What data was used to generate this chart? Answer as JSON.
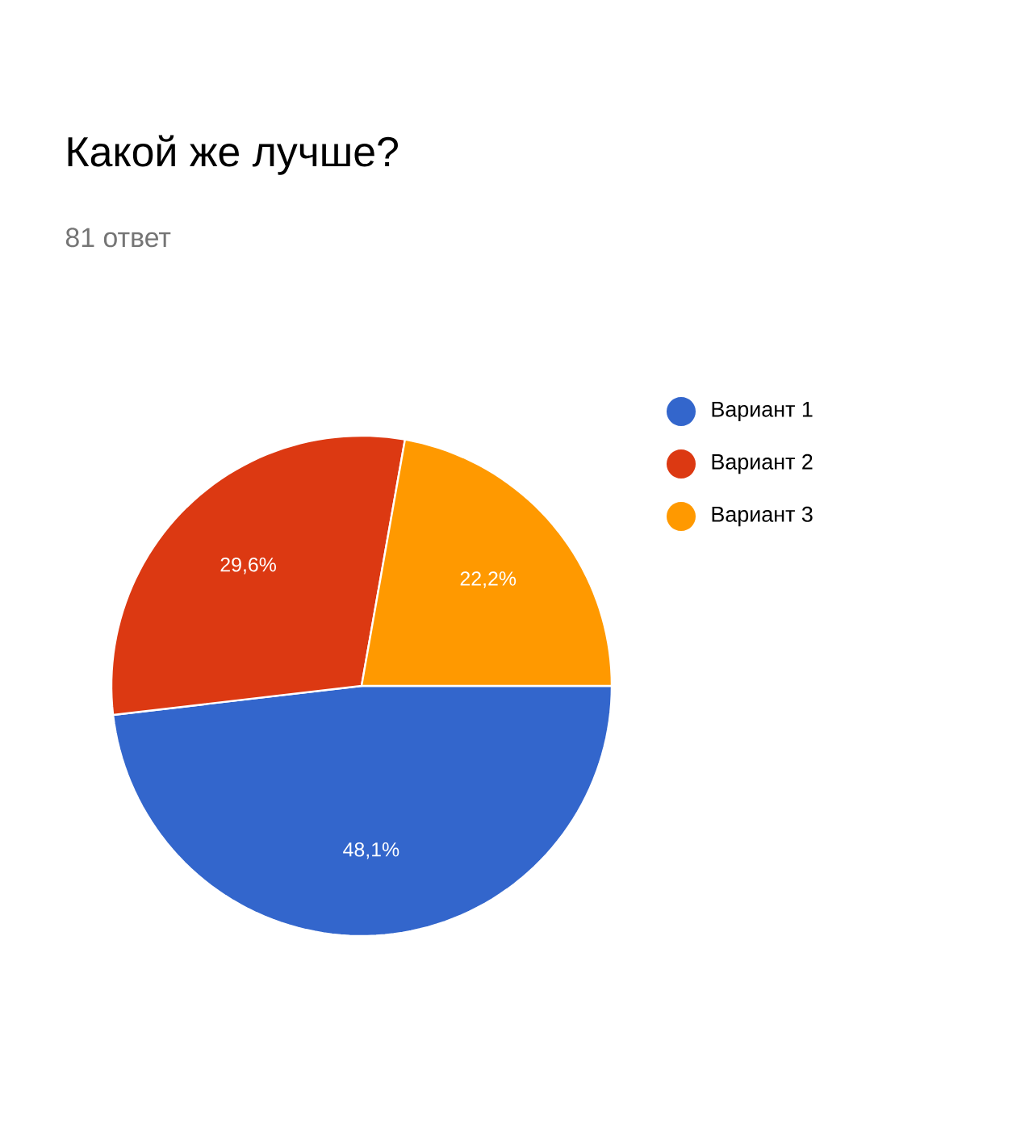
{
  "chart_data": {
    "type": "pie",
    "title": "Какой же лучше?",
    "subtitle": "81 ответ",
    "categories": [
      "Вариант 1",
      "Вариант 2",
      "Вариант 3"
    ],
    "values": [
      48.1,
      29.6,
      22.2
    ],
    "colors": [
      "#3366cc",
      "#dc3912",
      "#ff9900"
    ],
    "value_labels": [
      "48,1%",
      "29,6%",
      "22,2%"
    ],
    "legend": "right"
  }
}
